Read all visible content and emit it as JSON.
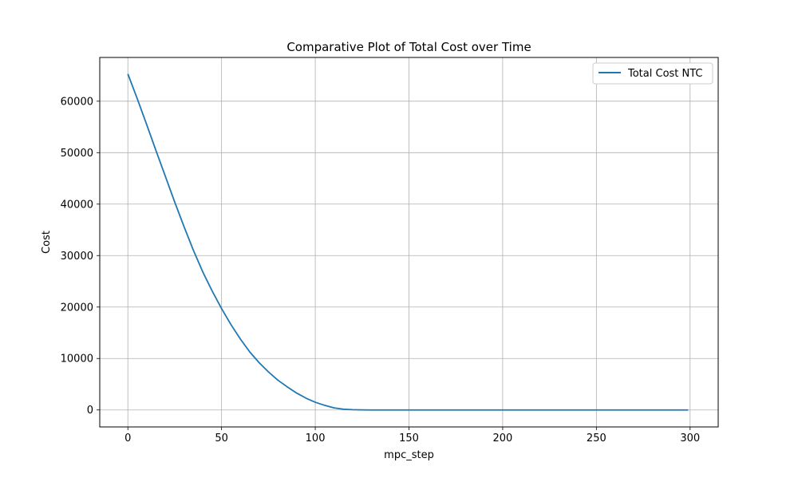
{
  "chart_data": {
    "type": "line",
    "title": "Comparative Plot of Total Cost over Time",
    "xlabel": "mpc_step",
    "ylabel": "Cost",
    "xlim": [
      -15,
      315
    ],
    "ylim": [
      -3300,
      68500
    ],
    "xticks": [
      0,
      50,
      100,
      150,
      200,
      250,
      300
    ],
    "yticks": [
      0,
      10000,
      20000,
      30000,
      40000,
      50000,
      60000
    ],
    "grid": true,
    "legend_position": "top-right",
    "series": [
      {
        "name": "Total Cost NTC",
        "color": "#1f77b4",
        "x": [
          0,
          5,
          10,
          15,
          20,
          25,
          30,
          35,
          40,
          45,
          50,
          55,
          60,
          65,
          70,
          75,
          80,
          85,
          90,
          95,
          100,
          105,
          110,
          115,
          120,
          125,
          130,
          140,
          150,
          175,
          200,
          225,
          250,
          275,
          299
        ],
        "y": [
          65300,
          60500,
          55500,
          50400,
          45400,
          40400,
          35600,
          31000,
          26800,
          23100,
          19700,
          16600,
          13800,
          11300,
          9200,
          7400,
          5800,
          4500,
          3300,
          2300,
          1500,
          900,
          400,
          150,
          50,
          10,
          0,
          0,
          0,
          0,
          0,
          0,
          0,
          0,
          0
        ]
      }
    ]
  }
}
